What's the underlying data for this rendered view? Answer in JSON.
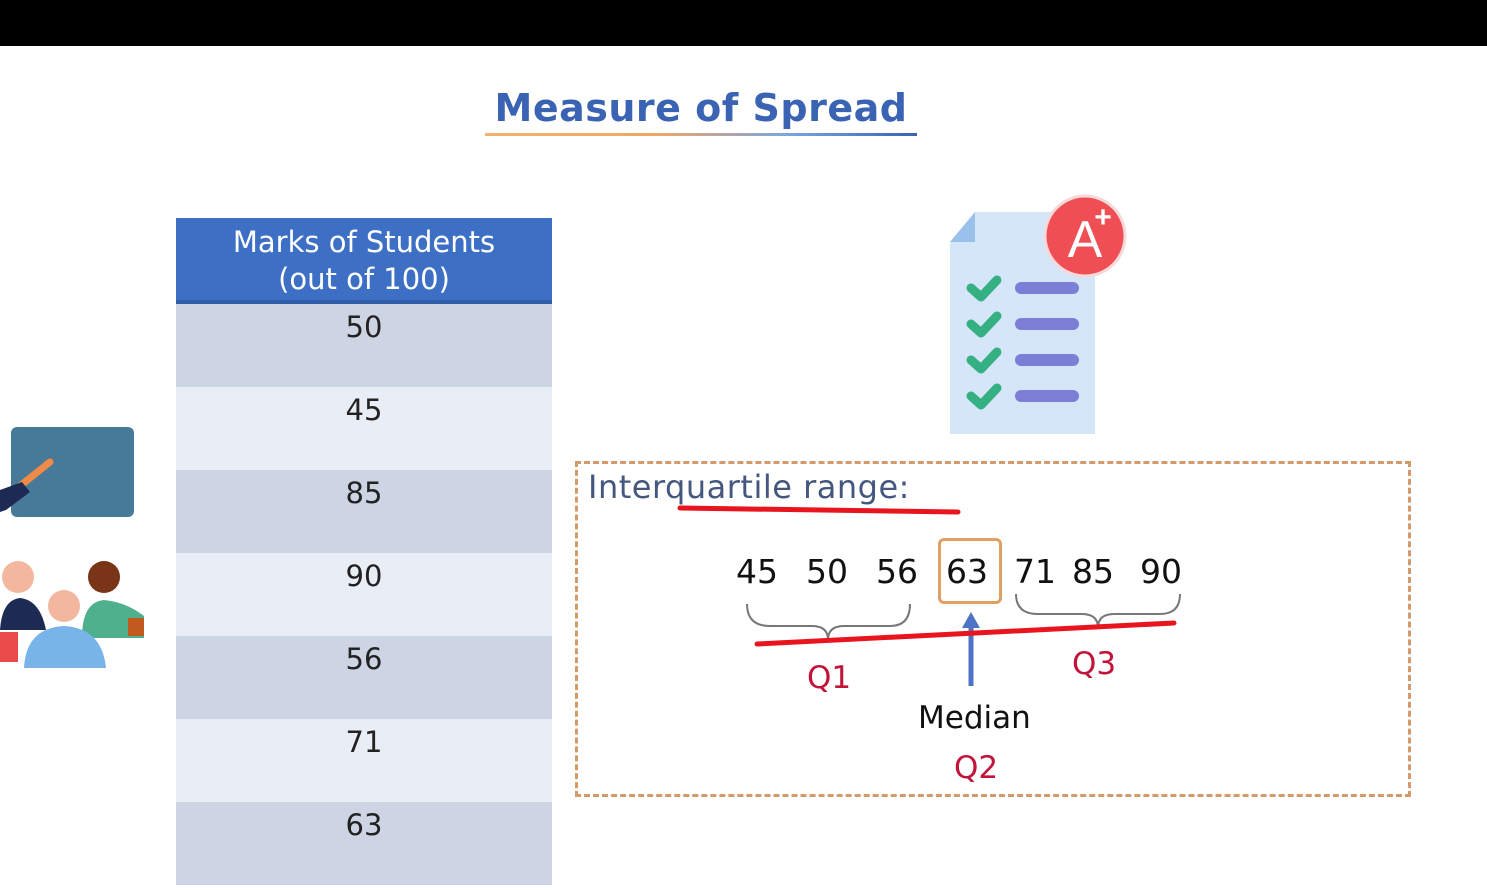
{
  "slide": {
    "title": "Measure of Spread"
  },
  "table": {
    "header": "Marks of Students",
    "subheader": "(out of 100)",
    "rows": [
      "50",
      "45",
      "85",
      "90",
      "56",
      "71",
      "63"
    ]
  },
  "iqr": {
    "label": "Interquartile range:",
    "sorted_values": [
      "45",
      "50",
      "56",
      "63",
      "71",
      "85",
      "90"
    ],
    "q1_label": "Q1",
    "q3_label": "Q3",
    "median_label": "Median",
    "q2_label": "Q2"
  },
  "paper_icon": {
    "grade": "A",
    "grade_sup": "+"
  },
  "colors": {
    "title": "#3a63b4",
    "table_header": "#3d6fc4",
    "row_dark": "#cdd4e3",
    "row_light": "#e9edf5",
    "quartile_red": "#c2143a",
    "box_border": "#d49a6a",
    "annotation_red": "#e8141e"
  }
}
